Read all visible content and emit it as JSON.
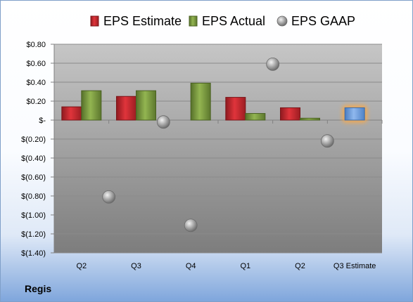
{
  "company": "Regis",
  "chart_data": {
    "type": "bar",
    "title": "",
    "xlabel": "",
    "ylabel": "",
    "categories": [
      "Q2",
      "Q3",
      "Q4",
      "Q1",
      "Q2",
      "Q3 Estimate"
    ],
    "ylim": [
      -1.4,
      0.8
    ],
    "yticks": [
      0.8,
      0.6,
      0.4,
      0.2,
      0,
      -0.2,
      -0.4,
      -0.6,
      -0.8,
      -1.0,
      -1.2,
      -1.4
    ],
    "ytick_labels": [
      "$0.80",
      "$0.60",
      "$0.40",
      "$0.20",
      "$-",
      "$(0.20)",
      "$(0.40)",
      "$(0.60)",
      "$(0.80)",
      "$(1.00)",
      "$(1.20)",
      "$(1.40)"
    ],
    "legend_position": "top",
    "grid": true,
    "series": [
      {
        "name": "EPS Estimate",
        "kind": "bar",
        "color": "#c0262d",
        "values": [
          0.14,
          0.25,
          null,
          0.24,
          0.13,
          null
        ]
      },
      {
        "name": "EPS Actual",
        "kind": "bar",
        "color": "#7a9a3a",
        "values": [
          0.31,
          0.31,
          0.39,
          0.07,
          0.02,
          null
        ]
      },
      {
        "name": "EPS GAAP",
        "kind": "scatter",
        "color": "#a6a6a6",
        "values": [
          -0.81,
          -0.02,
          -1.11,
          0.59,
          -0.22,
          null
        ]
      },
      {
        "name": "",
        "kind": "bar",
        "color": "#6a9bd8",
        "highlight": "#f7a84a",
        "values": [
          null,
          null,
          null,
          null,
          null,
          0.13
        ]
      }
    ]
  }
}
